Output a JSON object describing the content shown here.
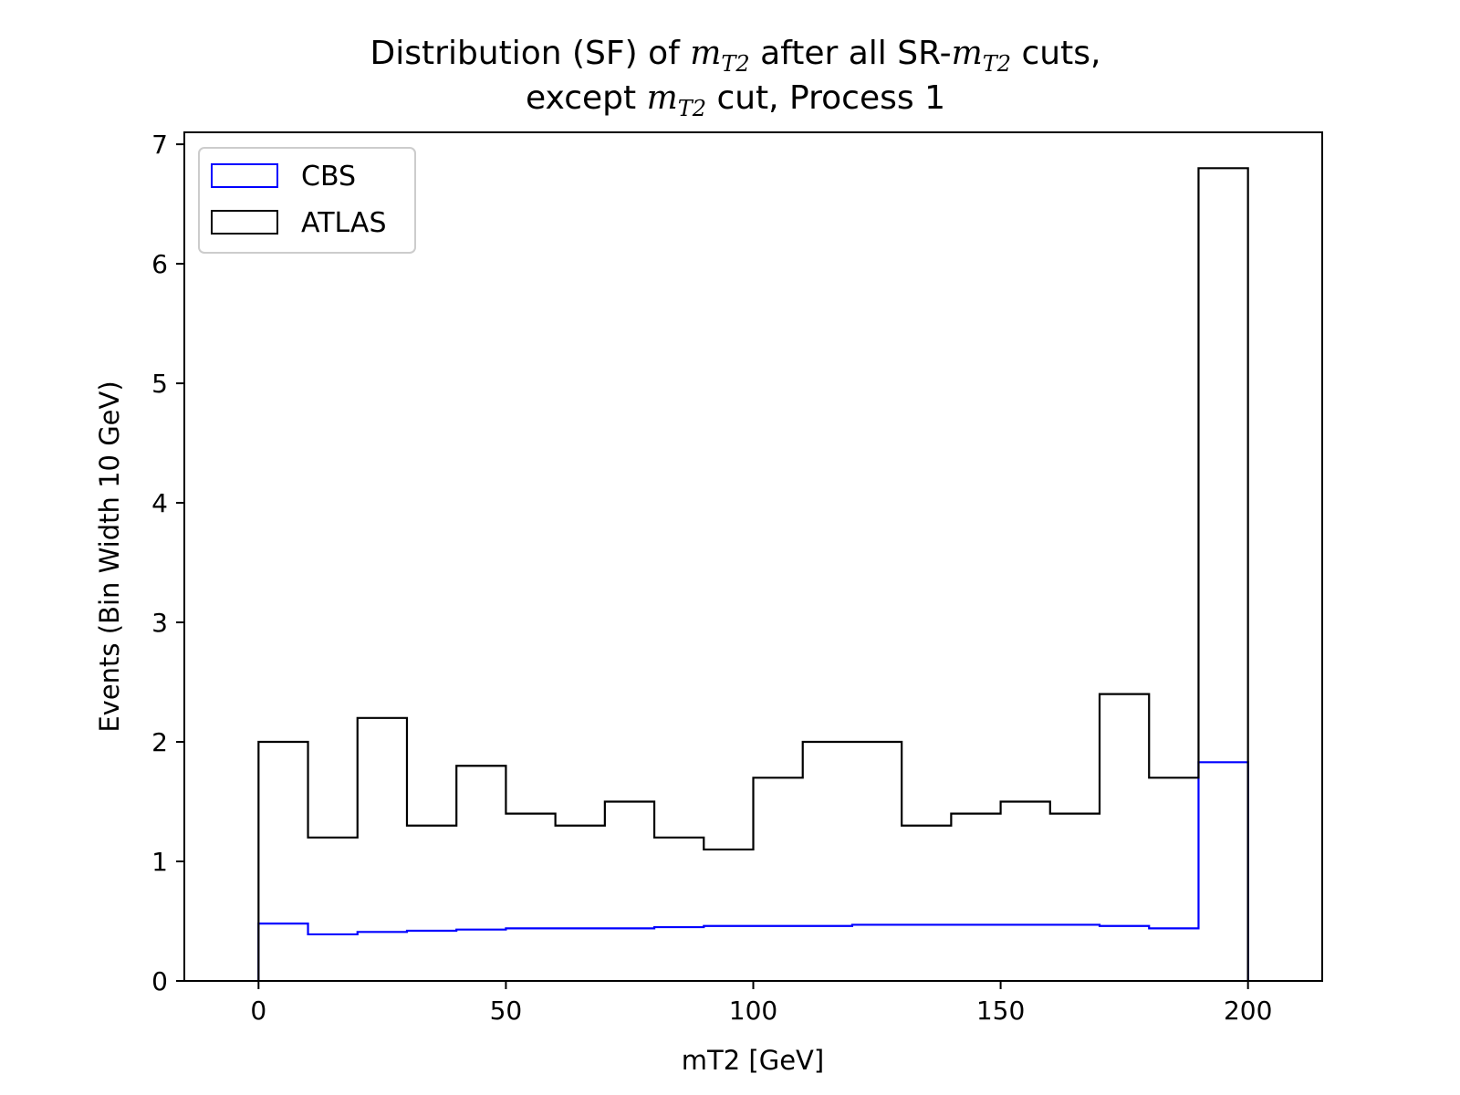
{
  "chart_data": {
    "type": "histogram-step",
    "title": {
      "line1_a": "Distribution (SF) of ",
      "line1_m": "m",
      "line1_sub": "T2",
      "line1_b": " after all SR-",
      "line1_m2": "m",
      "line1_sub2": "T2",
      "line1_c": " cuts,",
      "line2_a": "except ",
      "line2_m": "m",
      "line2_sub": "T2",
      "line2_b": " cut, Process 1"
    },
    "xlabel": "mT2 [GeV]",
    "ylabel": "Events (Bin Width 10 GeV)",
    "xlim": [
      -15,
      215
    ],
    "ylim": [
      0,
      7.1
    ],
    "xticks": [
      0,
      50,
      100,
      150,
      200
    ],
    "yticks": [
      0,
      1,
      2,
      3,
      4,
      5,
      6,
      7
    ],
    "grid": false,
    "legend_position": "upper-left",
    "bin_edges": [
      0,
      10,
      20,
      30,
      40,
      50,
      60,
      70,
      80,
      90,
      100,
      110,
      120,
      130,
      140,
      150,
      160,
      170,
      180,
      190,
      200
    ],
    "series": [
      {
        "name": "CBS",
        "color": "#0000ff",
        "values": [
          0.48,
          0.39,
          0.41,
          0.42,
          0.43,
          0.44,
          0.44,
          0.44,
          0.45,
          0.46,
          0.46,
          0.46,
          0.47,
          0.47,
          0.47,
          0.47,
          0.47,
          0.46,
          0.44,
          1.83
        ]
      },
      {
        "name": "ATLAS",
        "color": "#000000",
        "values": [
          2.0,
          1.2,
          2.2,
          1.3,
          1.8,
          1.4,
          1.3,
          1.5,
          1.2,
          1.1,
          1.7,
          2.0,
          2.0,
          1.3,
          1.4,
          1.5,
          1.4,
          2.4,
          1.7,
          6.8
        ]
      }
    ]
  }
}
